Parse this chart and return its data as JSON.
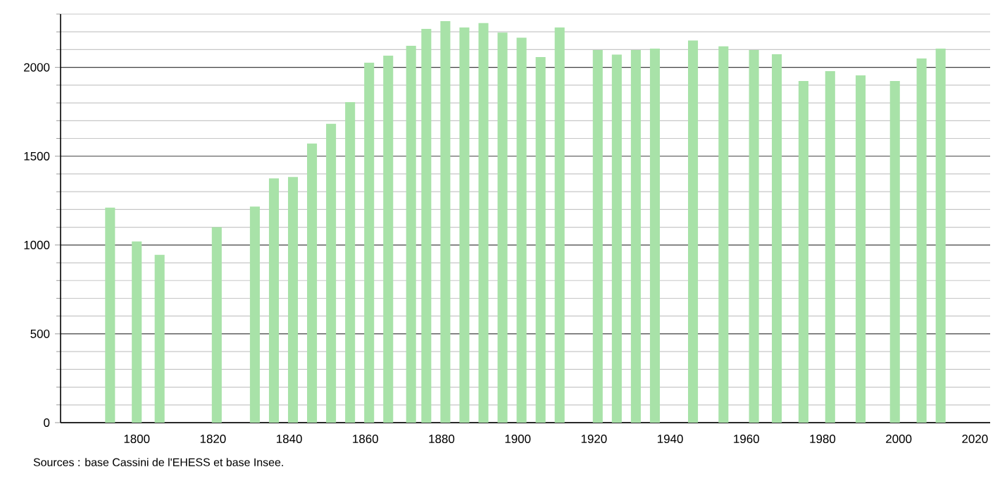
{
  "chart_data": {
    "type": "bar",
    "x": [
      1793,
      1800,
      1806,
      1821,
      1831,
      1836,
      1841,
      1846,
      1851,
      1856,
      1861,
      1866,
      1872,
      1876,
      1881,
      1886,
      1891,
      1896,
      1901,
      1906,
      1911,
      1921,
      1926,
      1931,
      1936,
      1946,
      1954,
      1962,
      1968,
      1975,
      1982,
      1990,
      1999,
      2006,
      2011
    ],
    "values": [
      1210,
      1020,
      945,
      1100,
      1216,
      1375,
      1383,
      1571,
      1682,
      1804,
      2026,
      2066,
      2122,
      2217,
      2260,
      2225,
      2249,
      2196,
      2167,
      2058,
      2225,
      2098,
      2072,
      2098,
      2106,
      2151,
      2119,
      2098,
      2074,
      1923,
      1979,
      1955,
      1923,
      2050,
      2106
    ],
    "color": "#a8e2a8",
    "xlim": [
      1780,
      2024
    ],
    "xticks": [
      1800,
      1820,
      1840,
      1860,
      1880,
      1900,
      1920,
      1940,
      1960,
      1980,
      2000,
      2020
    ],
    "ylim": [
      0,
      2300
    ],
    "yticks": [
      0,
      {
        "value": 100,
        "label": null
      },
      {
        "value": 200,
        "label": null
      },
      {
        "value": 300,
        "label": null
      },
      {
        "value": 400,
        "label": null
      },
      500,
      {
        "value": 600,
        "label": null
      },
      {
        "value": 700,
        "label": null
      },
      {
        "value": 800,
        "label": null
      },
      {
        "value": 900,
        "label": null
      },
      1000,
      {
        "value": 1100,
        "label": null
      },
      {
        "value": 1200,
        "label": null
      },
      {
        "value": 1300,
        "label": null
      },
      {
        "value": 1400,
        "label": null
      },
      1500,
      {
        "value": 1600,
        "label": null
      },
      {
        "value": 1700,
        "label": null
      },
      {
        "value": 1800,
        "label": null
      },
      {
        "value": 1900,
        "label": null
      },
      2000,
      {
        "value": 2100,
        "label": null
      },
      {
        "value": 2200,
        "label": null
      },
      {
        "value": 2300,
        "label": null
      }
    ],
    "grid": "y",
    "annotations": [
      "Sources : base Cassini de l'EHESS et base Insee."
    ]
  }
}
